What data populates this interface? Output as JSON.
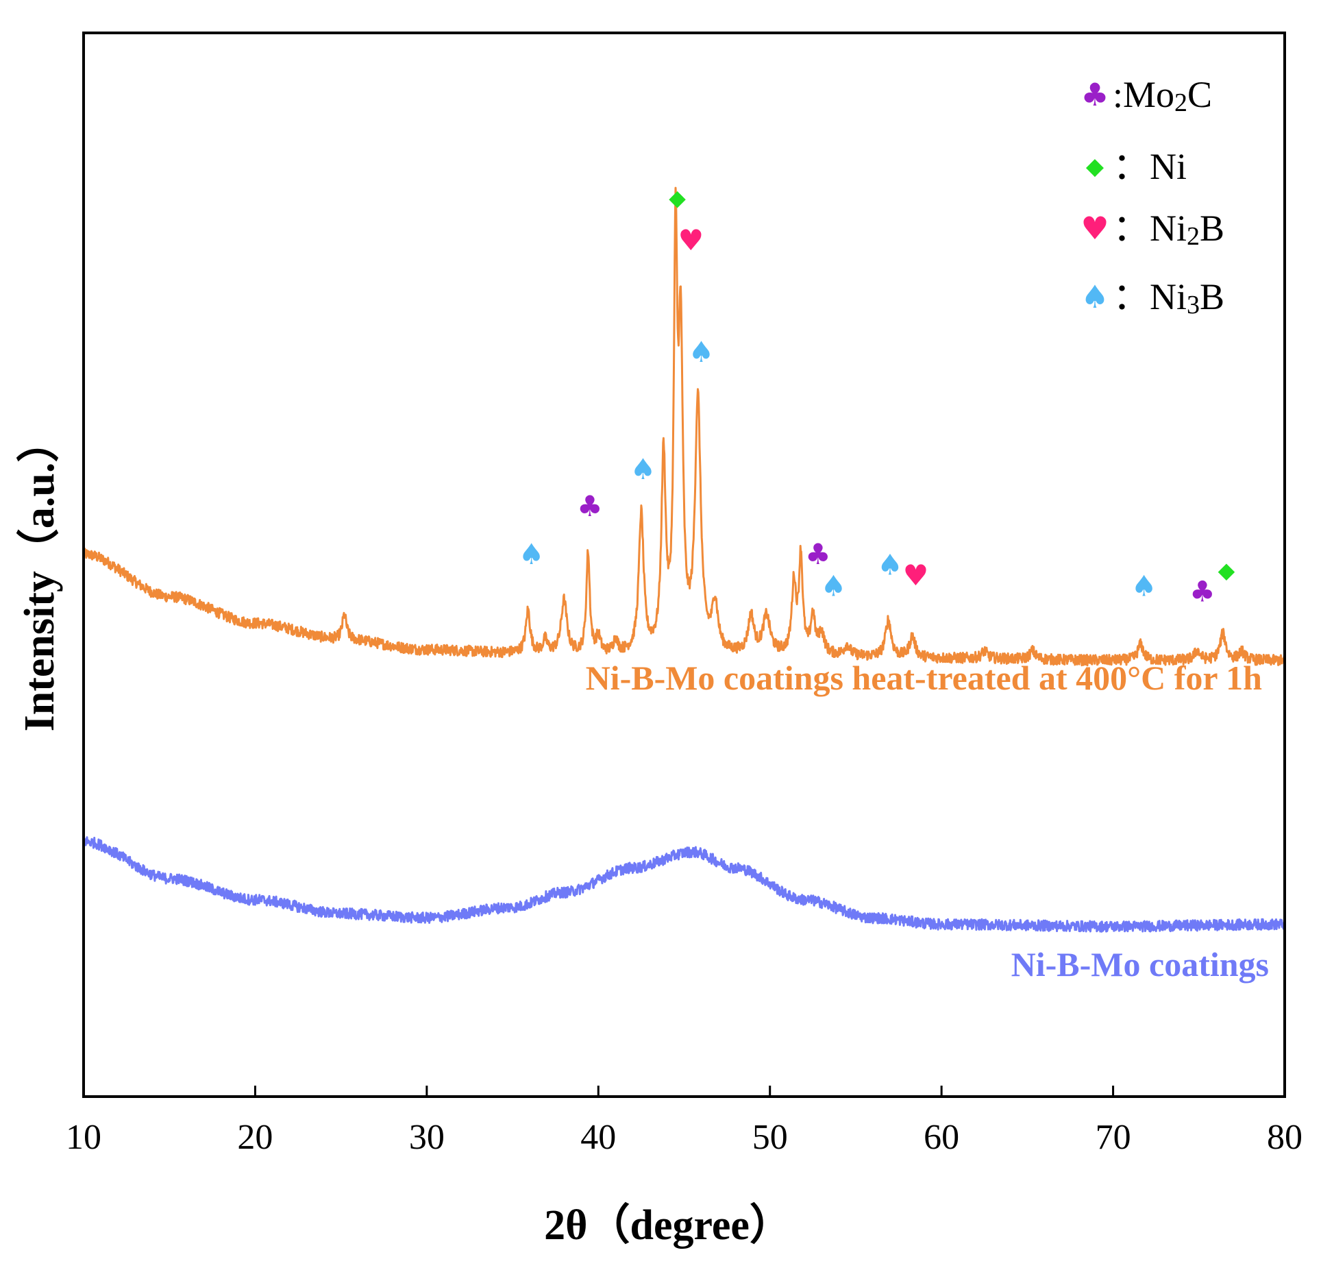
{
  "chart_data": {
    "type": "line",
    "title": "",
    "xlabel": "2θ（degree）",
    "ylabel": "Intensity（a.u.）",
    "xlim": [
      10,
      80
    ],
    "ylim": [
      0,
      100
    ],
    "x_ticks": [
      10,
      20,
      30,
      40,
      50,
      60,
      70,
      80
    ],
    "x_tick_labels": [
      "10",
      "20",
      "30",
      "40",
      "50",
      "60",
      "70",
      "80"
    ],
    "grid": false,
    "legend_position": "top-right",
    "series": [
      {
        "name": "Ni-B-Mo coatings heat-treated at 400°C for 1h",
        "label": "Ni-B-Mo coatings heat-treated at 400°C for 1h",
        "color": "#f08a38",
        "baseline": [
          [
            10,
            51
          ],
          [
            15,
            47
          ],
          [
            20,
            44.5
          ],
          [
            25,
            43
          ],
          [
            30,
            42
          ],
          [
            35,
            41.7
          ],
          [
            40,
            41.5
          ],
          [
            50,
            41.5
          ],
          [
            60,
            41.2
          ],
          [
            70,
            41
          ],
          [
            80,
            41
          ]
        ],
        "peaks": [
          {
            "x": 25.2,
            "h": 2.3,
            "w": 0.15
          },
          {
            "x": 35.9,
            "h": 4,
            "w": 0.15
          },
          {
            "x": 36.9,
            "h": 1.2,
            "w": 0.15
          },
          {
            "x": 38.0,
            "h": 5,
            "w": 0.2
          },
          {
            "x": 39.4,
            "h": 9.5,
            "w": 0.12
          },
          {
            "x": 40.0,
            "h": 1.5,
            "w": 0.15
          },
          {
            "x": 41.0,
            "h": 1.3,
            "w": 0.15
          },
          {
            "x": 42.5,
            "h": 13,
            "w": 0.17
          },
          {
            "x": 43.8,
            "h": 18,
            "w": 0.15
          },
          {
            "x": 44.5,
            "h": 36.5,
            "w": 0.12
          },
          {
            "x": 44.8,
            "h": 28,
            "w": 0.15
          },
          {
            "x": 45.8,
            "h": 23.5,
            "w": 0.2
          },
          {
            "x": 46.8,
            "h": 4.5,
            "w": 0.2
          },
          {
            "x": 48.9,
            "h": 3.5,
            "w": 0.2
          },
          {
            "x": 49.8,
            "h": 3.5,
            "w": 0.25
          },
          {
            "x": 51.4,
            "h": 6.5,
            "w": 0.15
          },
          {
            "x": 51.8,
            "h": 9,
            "w": 0.13
          },
          {
            "x": 52.5,
            "h": 3.5,
            "w": 0.15
          },
          {
            "x": 53.0,
            "h": 2,
            "w": 0.2
          },
          {
            "x": 54.5,
            "h": 1,
            "w": 0.2
          },
          {
            "x": 56.9,
            "h": 3.5,
            "w": 0.2
          },
          {
            "x": 58.3,
            "h": 2,
            "w": 0.2
          },
          {
            "x": 62.5,
            "h": 0.7,
            "w": 0.2
          },
          {
            "x": 65.3,
            "h": 0.8,
            "w": 0.2
          },
          {
            "x": 71.6,
            "h": 1.5,
            "w": 0.2
          },
          {
            "x": 74.9,
            "h": 0.9,
            "w": 0.2
          },
          {
            "x": 76.4,
            "h": 2.5,
            "w": 0.2
          },
          {
            "x": 77.5,
            "h": 0.8,
            "w": 0.2
          }
        ],
        "noise": 0.5
      },
      {
        "name": "Ni-B-Mo coatings",
        "label": "Ni-B-Mo coatings",
        "color": "#6f7af7",
        "baseline": [
          [
            10,
            24
          ],
          [
            15,
            20.5
          ],
          [
            20,
            18.5
          ],
          [
            25,
            17.2
          ],
          [
            30,
            16.8
          ],
          [
            35,
            17.8
          ],
          [
            38,
            19.2
          ],
          [
            42,
            21.5
          ],
          [
            45.5,
            23
          ],
          [
            48,
            21.5
          ],
          [
            52,
            18.5
          ],
          [
            56,
            16.8
          ],
          [
            60,
            16.2
          ],
          [
            70,
            16
          ],
          [
            80,
            16.2
          ]
        ],
        "peaks": [],
        "noise": 0.5
      }
    ],
    "annotations": [
      {
        "symbol": "club",
        "phase": "Mo2C",
        "x": 39.5,
        "y": 55.5
      },
      {
        "symbol": "club",
        "phase": "Mo2C",
        "x": 52.8,
        "y": 51
      },
      {
        "symbol": "club",
        "phase": "Mo2C",
        "x": 75.2,
        "y": 47.5
      },
      {
        "symbol": "diamond",
        "phase": "Ni",
        "x": 44.6,
        "y": 84.5
      },
      {
        "symbol": "diamond",
        "phase": "Ni",
        "x": 76.6,
        "y": 49.5
      },
      {
        "symbol": "heart",
        "phase": "Ni2B",
        "x": 45.4,
        "y": 80.5
      },
      {
        "symbol": "heart",
        "phase": "Ni2B",
        "x": 58.5,
        "y": 49
      },
      {
        "symbol": "spade",
        "phase": "Ni3B",
        "x": 36.1,
        "y": 51
      },
      {
        "symbol": "spade",
        "phase": "Ni3B",
        "x": 42.6,
        "y": 59
      },
      {
        "symbol": "spade",
        "phase": "Ni3B",
        "x": 46.0,
        "y": 70
      },
      {
        "symbol": "spade",
        "phase": "Ni3B",
        "x": 53.7,
        "y": 48
      },
      {
        "symbol": "spade",
        "phase": "Ni3B",
        "x": 57.0,
        "y": 50
      },
      {
        "symbol": "spade",
        "phase": "Ni3B",
        "x": 71.8,
        "y": 48
      }
    ],
    "legend": [
      {
        "symbol": "club",
        "glyph": "♣",
        "color": "#9a1fc8",
        "text": ":Mo",
        "sub": "2",
        "after": "C"
      },
      {
        "symbol": "diamond",
        "glyph": "◆",
        "color": "#22e022",
        "text": "：Ni",
        "sub": "",
        "after": ""
      },
      {
        "symbol": "heart",
        "glyph": "♥",
        "color": "#ff1f7a",
        "text": "：Ni",
        "sub": "2",
        "after": "B"
      },
      {
        "symbol": "spade",
        "glyph": "♠",
        "color": "#52b8f5",
        "text": "：Ni",
        "sub": "3",
        "after": "B"
      }
    ]
  }
}
